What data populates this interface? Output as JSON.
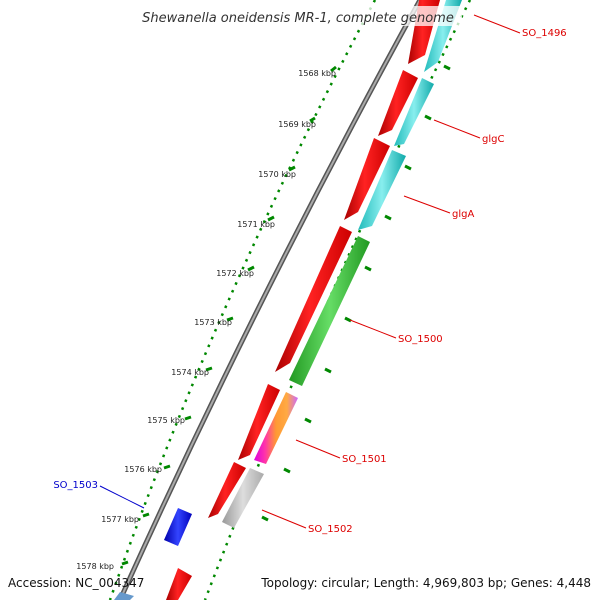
{
  "title": "Shewanella oneidensis MR-1, complete genome",
  "footer": {
    "accession": "Accession: NC_004347",
    "topology": "Topology: circular; Length: 4,969,803 bp; Genes: 4,448"
  },
  "ticks": [
    "1568 kbp",
    "1569 kbp",
    "1570 kbp",
    "1571 kbp",
    "1572 kbp",
    "1573 kbp",
    "1574 kbp",
    "1575 kbp",
    "1576 kbp",
    "1577 kbp",
    "1578 kbp"
  ],
  "features": {
    "forward_color": "#ff0000",
    "reverse_colors": [
      "#22cccc",
      "#33bb33",
      "#dd00dd",
      "#bbbbbb",
      "#0000ee"
    ]
  },
  "gene_labels": [
    {
      "text": "SO_1496",
      "color": "#dd0000"
    },
    {
      "text": "glgC",
      "color": "#dd0000"
    },
    {
      "text": "glgA",
      "color": "#dd0000"
    },
    {
      "text": "SO_1500",
      "color": "#dd0000"
    },
    {
      "text": "SO_1501",
      "color": "#dd0000"
    },
    {
      "text": "SO_1502",
      "color": "#dd0000"
    },
    {
      "text": "SO_1503",
      "color": "#0000cc"
    }
  ]
}
